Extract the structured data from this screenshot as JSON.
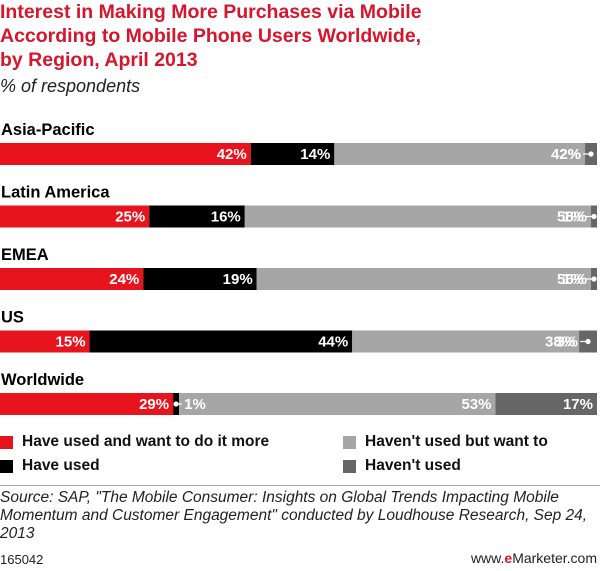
{
  "colors": {
    "red": "#e8141d",
    "black": "#000000",
    "light_gray": "#a6a6a6",
    "dark_gray": "#666666",
    "title_red": "#d5162c"
  },
  "header": {
    "title_lines": [
      "Interest in Making More Purchases via Mobile",
      "According to Mobile Phone Users Worldwide,",
      "by Region, April 2013"
    ],
    "subtitle": "% of respondents"
  },
  "chart_data": {
    "type": "bar",
    "orientation": "horizontal",
    "stacked": true,
    "unit": "%",
    "xlim": [
      0,
      100
    ],
    "categories": [
      "Asia-Pacific",
      "Latin America",
      "EMEA",
      "US",
      "Worldwide"
    ],
    "series": [
      {
        "name": "Have used and want to do it more",
        "color": "#e8141d",
        "label_color": "#ffffff",
        "values": [
          42,
          25,
          24,
          15,
          29
        ]
      },
      {
        "name": "Have used",
        "color": "#000000",
        "label_color": "#ffffff",
        "values": [
          14,
          16,
          19,
          44,
          1
        ]
      },
      {
        "name": "Haven't used but want to",
        "color": "#a6a6a6",
        "label_color": "#ffffff",
        "values": [
          42,
          58,
          56,
          38,
          53
        ]
      },
      {
        "name": "Haven't used",
        "color": "#666666",
        "label_color": "#ffffff",
        "values": [
          2,
          1,
          1,
          3,
          17
        ]
      }
    ],
    "data_labels": [
      [
        "42%",
        "14%",
        "42%",
        "2%"
      ],
      [
        "25%",
        "16%",
        "58%",
        "1%"
      ],
      [
        "24%",
        "19%",
        "56%",
        "1%"
      ],
      [
        "15%",
        "44%",
        "38%",
        "3%"
      ],
      [
        "29%",
        "1%",
        "53%",
        "17%"
      ]
    ]
  },
  "legend": [
    {
      "label": "Have used and want to do it more",
      "color": "#e8141d"
    },
    {
      "label": "Haven't used but want to",
      "color": "#a6a6a6"
    },
    {
      "label": "Have used",
      "color": "#000000"
    },
    {
      "label": "Haven't used",
      "color": "#666666"
    }
  ],
  "footer": {
    "source": "Source: SAP, \"The Mobile Consumer: Insights on Global Trends Impacting Mobile Momentum and Customer Engagement\" conducted by Loudhouse Research, Sep 24, 2013",
    "chart_id": "165042",
    "brand_prefix": "www.",
    "brand_e": "e",
    "brand_rest": "Marketer.com"
  }
}
